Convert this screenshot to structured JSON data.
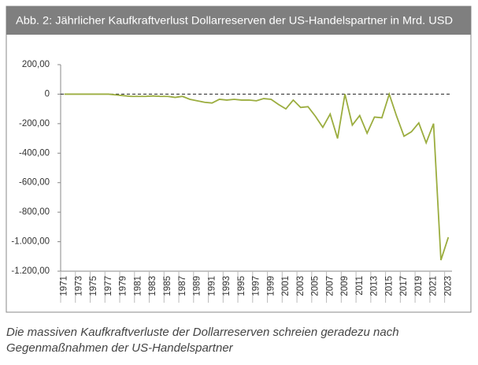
{
  "chart_data": {
    "type": "line",
    "title": "Abb. 2: Jährlicher Kaufkraftverlust Dollarreserven der US-Handelspartner in Mrd. USD",
    "caption": [
      "Die massiven Kaufkraftverluste der Dollarreserven schreien geradezu nach",
      "Gegenmaßnahmen der US-Handelspartner"
    ],
    "categories": [
      "1971",
      null,
      "1973",
      null,
      "1975",
      null,
      "1977",
      null,
      "1979",
      null,
      "1981",
      null,
      "1983",
      null,
      "1985",
      null,
      "1987",
      null,
      "1989",
      null,
      "1991",
      null,
      "1993",
      null,
      "1995",
      null,
      "1997",
      null,
      "1999",
      null,
      "2001",
      null,
      "2003",
      null,
      "2005",
      null,
      "2007",
      null,
      "2009",
      null,
      "2011",
      null,
      "2013",
      null,
      "2015",
      null,
      "2017",
      null,
      "2019",
      null,
      "2021",
      null,
      "2023"
    ],
    "series": [
      {
        "color": "#9bad3f",
        "values": [
          0,
          0,
          0,
          0,
          0,
          0,
          0,
          -5,
          -10,
          -15,
          -15,
          -15,
          -12,
          -15,
          -15,
          -22,
          -15,
          -35,
          -45,
          -55,
          -60,
          -35,
          -40,
          -35,
          -40,
          -40,
          -45,
          -30,
          -35,
          -70,
          -100,
          -40,
          -90,
          -85,
          -150,
          -225,
          -135,
          -300,
          0,
          -210,
          -145,
          -265,
          -155,
          -160,
          0,
          -150,
          -285,
          -255,
          -195,
          -330,
          -200,
          -1125,
          -970
        ]
      }
    ],
    "ylim": [
      -1200,
      200
    ],
    "yticks": [
      {
        "value": 200,
        "label": "200,00"
      },
      0,
      {
        "value": -200,
        "label": "-200,00"
      },
      {
        "value": -400,
        "label": "-400,00"
      },
      {
        "value": -600,
        "label": "-600,00"
      },
      {
        "value": -800,
        "label": "-800,00"
      },
      {
        "value": -1000,
        "label": "-1.000,00"
      },
      {
        "value": -1200,
        "label": "-1.200,00"
      }
    ],
    "zero_line": "dashed"
  }
}
